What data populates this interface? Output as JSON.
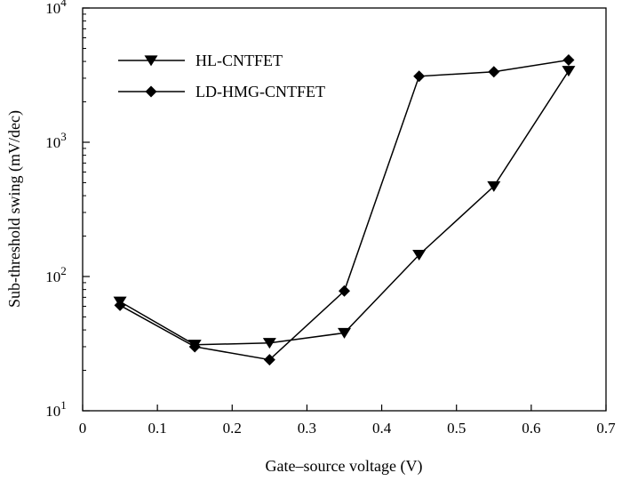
{
  "chart_data": {
    "type": "line",
    "title": "",
    "xlabel": "Gate–source voltage (V)",
    "ylabel": "Sub-threshold swing (mV/dec)",
    "xlim": [
      0,
      0.7
    ],
    "ylim": [
      10,
      10000
    ],
    "yscale": "log",
    "grid": false,
    "legend_position": "top-left",
    "x_ticks": [
      0,
      0.1,
      0.2,
      0.3,
      0.4,
      0.5,
      0.6,
      0.7
    ],
    "x_tick_labels": [
      "0",
      "0.1",
      "0.2",
      "0.3",
      "0.4",
      "0.5",
      "0.6",
      "0.7"
    ],
    "y_ticks": [
      {
        "value": 10,
        "base": "10",
        "exp": "1"
      },
      {
        "value": 100,
        "base": "10",
        "exp": "2"
      },
      {
        "value": 1000,
        "base": "10",
        "exp": "3"
      },
      {
        "value": 10000,
        "base": "10",
        "exp": "4"
      }
    ],
    "series": [
      {
        "name": "HL-CNTFET",
        "marker": "triangle-down",
        "color": "#000000",
        "x": [
          0.05,
          0.15,
          0.25,
          0.35,
          0.45,
          0.55,
          0.65
        ],
        "y": [
          65,
          31,
          32,
          38,
          145,
          470,
          3400
        ]
      },
      {
        "name": "LD-HMG-CNTFET",
        "marker": "diamond",
        "color": "#000000",
        "x": [
          0.05,
          0.15,
          0.25,
          0.35,
          0.45,
          0.55,
          0.65
        ],
        "y": [
          61,
          30,
          24,
          78,
          3100,
          3350,
          4100
        ]
      }
    ]
  }
}
